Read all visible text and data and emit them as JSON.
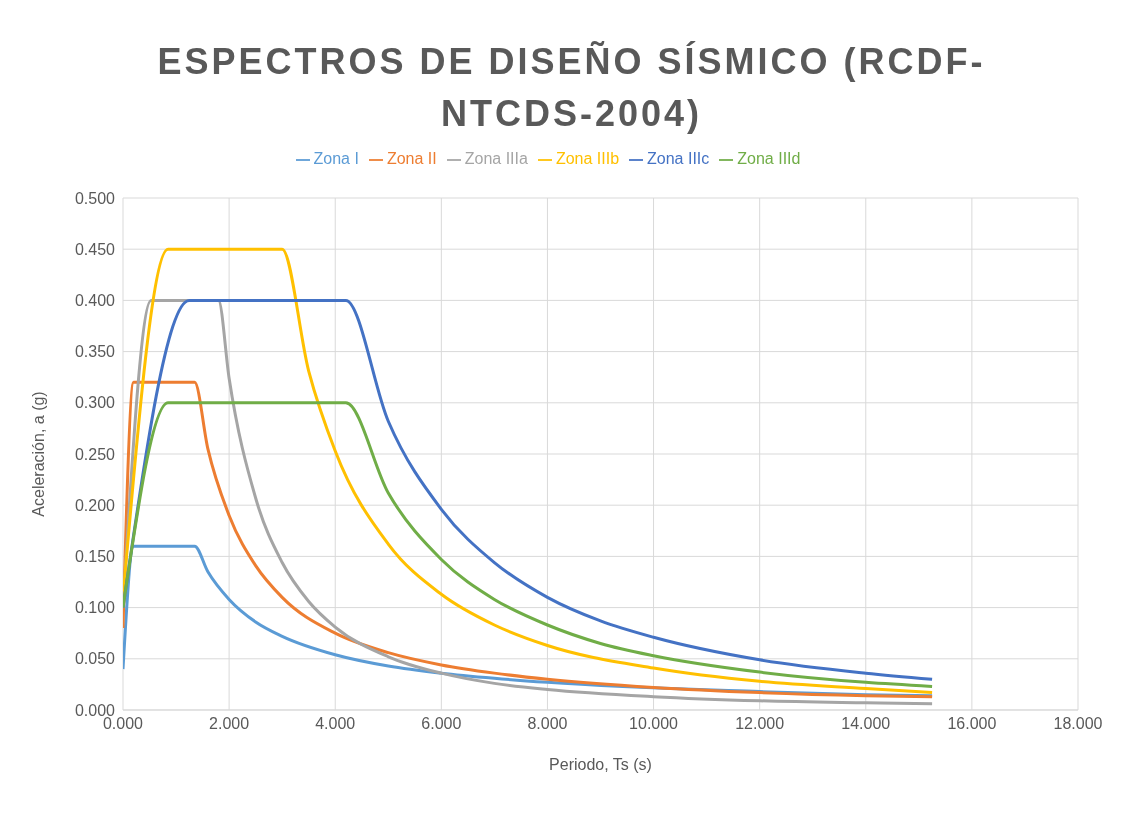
{
  "chart_data": {
    "type": "line",
    "title": "ESPECTROS DE DISEÑO SÍSMICO (RCDF-NTCDS-2004)",
    "xlabel": "Periodo, Ts (s)",
    "ylabel": "Aceleración, a (g)",
    "xlim": [
      0,
      18
    ],
    "xticks": [
      {
        "value": 0,
        "label": "0.000"
      },
      {
        "value": 2,
        "label": "2.000"
      },
      {
        "value": 4,
        "label": "4.000"
      },
      {
        "value": 6,
        "label": "6.000"
      },
      {
        "value": 8,
        "label": "8.000"
      },
      {
        "value": 10,
        "label": "10.000"
      },
      {
        "value": 12,
        "label": "12.000"
      },
      {
        "value": 14,
        "label": "14.000"
      },
      {
        "value": 16,
        "label": "16.000"
      },
      {
        "value": 18,
        "label": "18.000"
      }
    ],
    "ylim": [
      0,
      0.5
    ],
    "yticks": [
      {
        "value": 0,
        "label": "0.000"
      },
      {
        "value": 0.05,
        "label": "0.050"
      },
      {
        "value": 0.1,
        "label": "0.100"
      },
      {
        "value": 0.15,
        "label": "0.150"
      },
      {
        "value": 0.2,
        "label": "0.200"
      },
      {
        "value": 0.25,
        "label": "0.250"
      },
      {
        "value": 0.3,
        "label": "0.300"
      },
      {
        "value": 0.35,
        "label": "0.350"
      },
      {
        "value": 0.4,
        "label": "0.400"
      },
      {
        "value": 0.45,
        "label": "0.450"
      },
      {
        "value": 0.5,
        "label": "0.500"
      }
    ],
    "grid": true,
    "legend": "top",
    "marker": "none",
    "line_style": "solid",
    "series": [
      {
        "name": "Zona I",
        "color": "#5b9bd5",
        "x": [
          0,
          0.2,
          1.35,
          1.6,
          2,
          2.5,
          3,
          4,
          5,
          6,
          7,
          8,
          12,
          14,
          15.25
        ],
        "values": [
          0.04,
          0.16,
          0.16,
          0.135,
          0.108,
          0.086,
          0.072,
          0.054,
          0.043,
          0.036,
          0.031,
          0.027,
          0.018,
          0.015,
          0.014
        ]
      },
      {
        "name": "Zona II",
        "color": "#ed7d31",
        "x": [
          0,
          0.2,
          1.35,
          1.6,
          2,
          2.5,
          3,
          4,
          5,
          6,
          7,
          8,
          10,
          12,
          14,
          15.25
        ],
        "values": [
          0.08,
          0.32,
          0.32,
          0.255,
          0.19,
          0.141,
          0.11,
          0.075,
          0.056,
          0.044,
          0.036,
          0.03,
          0.022,
          0.017,
          0.014,
          0.013
        ]
      },
      {
        "name": "Zona IIIa",
        "color": "#a5a5a5",
        "x": [
          0,
          0.53,
          1.8,
          2,
          2.5,
          3,
          3.5,
          4,
          5,
          6,
          7,
          8,
          10,
          12,
          14,
          15.25
        ],
        "values": [
          0.1,
          0.4,
          0.4,
          0.324,
          0.207,
          0.144,
          0.106,
          0.081,
          0.052,
          0.036,
          0.026,
          0.02,
          0.013,
          0.009,
          0.007,
          0.006
        ]
      },
      {
        "name": "Zona IIIb",
        "color": "#ffc000",
        "x": [
          0,
          0.85,
          3,
          3.5,
          4,
          5,
          6,
          7,
          8,
          10,
          12,
          14,
          15.25
        ],
        "values": [
          0.11,
          0.45,
          0.45,
          0.331,
          0.253,
          0.162,
          0.113,
          0.083,
          0.063,
          0.041,
          0.028,
          0.021,
          0.017
        ]
      },
      {
        "name": "Zona IIIc",
        "color": "#4472c4",
        "x": [
          0,
          1.25,
          4.2,
          5,
          6,
          7,
          8,
          9,
          10,
          12,
          14,
          15.25
        ],
        "values": [
          0.1,
          0.4,
          0.4,
          0.282,
          0.196,
          0.144,
          0.11,
          0.087,
          0.071,
          0.049,
          0.036,
          0.03
        ]
      },
      {
        "name": "Zona IIId",
        "color": "#70ad47",
        "x": [
          0,
          0.85,
          4.2,
          5,
          6,
          7,
          8,
          9,
          10,
          12,
          14,
          15.25
        ],
        "values": [
          0.1,
          0.3,
          0.3,
          0.212,
          0.147,
          0.108,
          0.083,
          0.065,
          0.053,
          0.037,
          0.027,
          0.023
        ]
      }
    ]
  }
}
